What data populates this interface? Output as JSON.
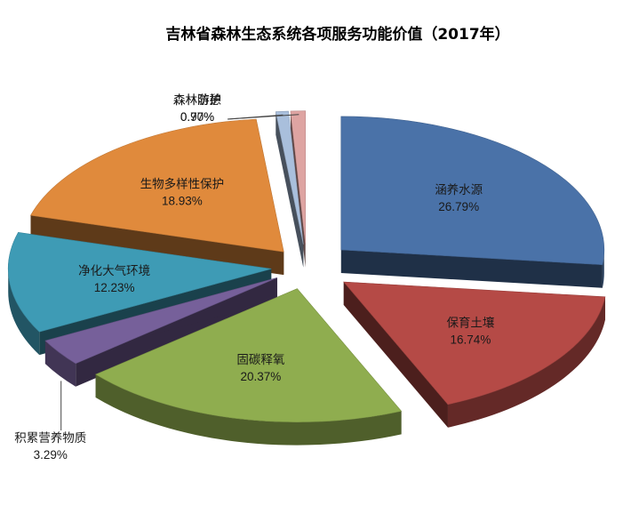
{
  "chart_data": {
    "type": "pie",
    "title": "吉林省森林生态系统各项服务功能价值（2017年）",
    "exploded": true,
    "style": "3d",
    "slices": [
      {
        "label": "涵养水源",
        "value": 26.79,
        "display": "26.79%",
        "color": "#4a72a8"
      },
      {
        "label": "保育土壤",
        "value": 16.74,
        "display": "16.74%",
        "color": "#b54a46"
      },
      {
        "label": "固碳释氧",
        "value": 20.37,
        "display": "20.37%",
        "color": "#8fad4f"
      },
      {
        "label": "积累营养物质",
        "value": 3.29,
        "display": "3.29%",
        "color": "#76609a"
      },
      {
        "label": "净化大气环境",
        "value": 12.23,
        "display": "12.23%",
        "color": "#3e9bb5"
      },
      {
        "label": "生物多样性保护",
        "value": 18.93,
        "display": "18.93%",
        "color": "#e08a3c"
      },
      {
        "label": "森林游憩",
        "value": 0.77,
        "display": "0.77%",
        "color": "#a9bfdc"
      },
      {
        "label": "森林防护",
        "value": 0.9,
        "display": "0.90%",
        "color": "#dea4a2"
      }
    ]
  }
}
